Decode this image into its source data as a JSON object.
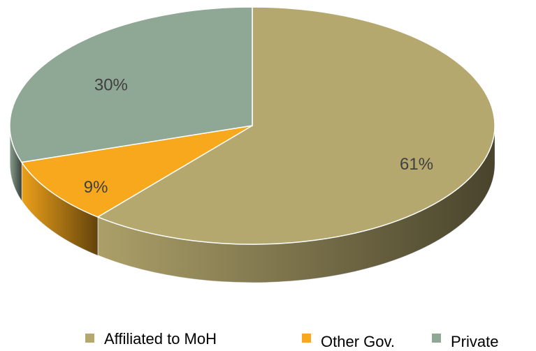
{
  "chart_data": {
    "type": "pie",
    "categories": [
      "Affiliated to MoH",
      "Other Gov.",
      "Private"
    ],
    "values": [
      61,
      9,
      30
    ],
    "value_labels": [
      "61%",
      "9%",
      "30%"
    ],
    "colors": [
      "#b5a86e",
      "#f8a81c",
      "#8fa795"
    ]
  }
}
